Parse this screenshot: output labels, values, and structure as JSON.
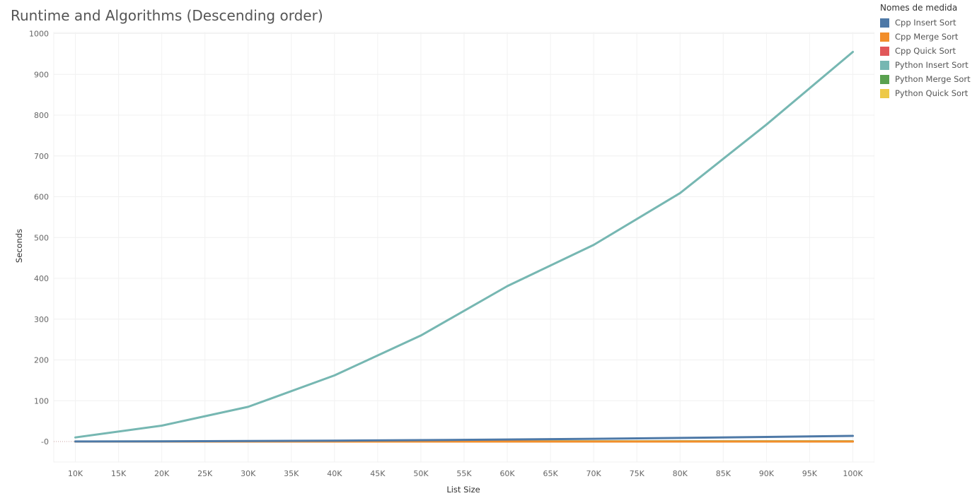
{
  "chart_data": {
    "type": "line",
    "title": "Runtime and Algorithms (Descending order)",
    "xlabel": "List Size",
    "ylabel": "Seconds",
    "x": [
      10000,
      20000,
      30000,
      40000,
      50000,
      60000,
      70000,
      80000,
      90000,
      100000
    ],
    "x_ticks": [
      "10K",
      "15K",
      "20K",
      "25K",
      "30K",
      "35K",
      "40K",
      "45K",
      "50K",
      "55K",
      "60K",
      "65K",
      "70K",
      "75K",
      "80K",
      "85K",
      "90K",
      "95K",
      "100K"
    ],
    "y_ticks": [
      "-0",
      "100",
      "200",
      "300",
      "400",
      "500",
      "600",
      "700",
      "800",
      "900",
      "1000"
    ],
    "ylim": [
      -50,
      1000
    ],
    "grid": true,
    "legend_title": "Nomes de medida",
    "legend_position": "right",
    "series": [
      {
        "name": "Cpp Insert Sort",
        "color": "#4e79a7",
        "values": [
          0.15,
          0.55,
          1.3,
          2.3,
          3.5,
          5.0,
          6.8,
          8.8,
          11.2,
          13.8
        ]
      },
      {
        "name": "Cpp Merge Sort",
        "color": "#f28e2b",
        "values": [
          0.01,
          0.01,
          0.02,
          0.02,
          0.03,
          0.03,
          0.04,
          0.05,
          0.05,
          0.06
        ]
      },
      {
        "name": "Cpp Quick Sort",
        "color": "#e15759",
        "values": [
          0.0,
          0.0,
          0.0,
          0.0,
          0.0,
          0.0,
          0.0,
          0.0,
          0.0,
          0.0
        ]
      },
      {
        "name": "Python Insert Sort",
        "color": "#76b7b2",
        "values": [
          10,
          39,
          85,
          162,
          260,
          381,
          482,
          609,
          777,
          955
        ]
      },
      {
        "name": "Python Merge Sort",
        "color": "#59a14f",
        "values": [
          0.05,
          0.1,
          0.15,
          0.2,
          0.25,
          0.3,
          0.35,
          0.4,
          0.45,
          0.5
        ]
      },
      {
        "name": "Python Quick Sort",
        "color": "#edc948",
        "values": [
          0.03,
          0.06,
          0.1,
          0.13,
          0.17,
          0.2,
          0.24,
          0.28,
          0.31,
          0.35
        ]
      }
    ]
  }
}
